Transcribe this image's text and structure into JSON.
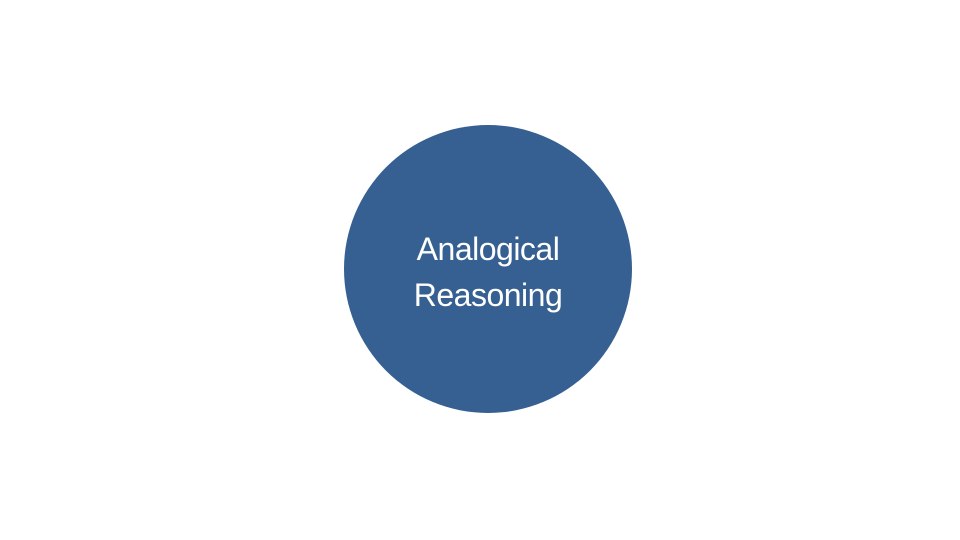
{
  "diagram": {
    "node": {
      "label_lines": [
        "Analogical",
        "Reasoning"
      ],
      "fill_color": "#366092",
      "text_color": "#ffffff"
    },
    "background_color": "#ffffff"
  }
}
